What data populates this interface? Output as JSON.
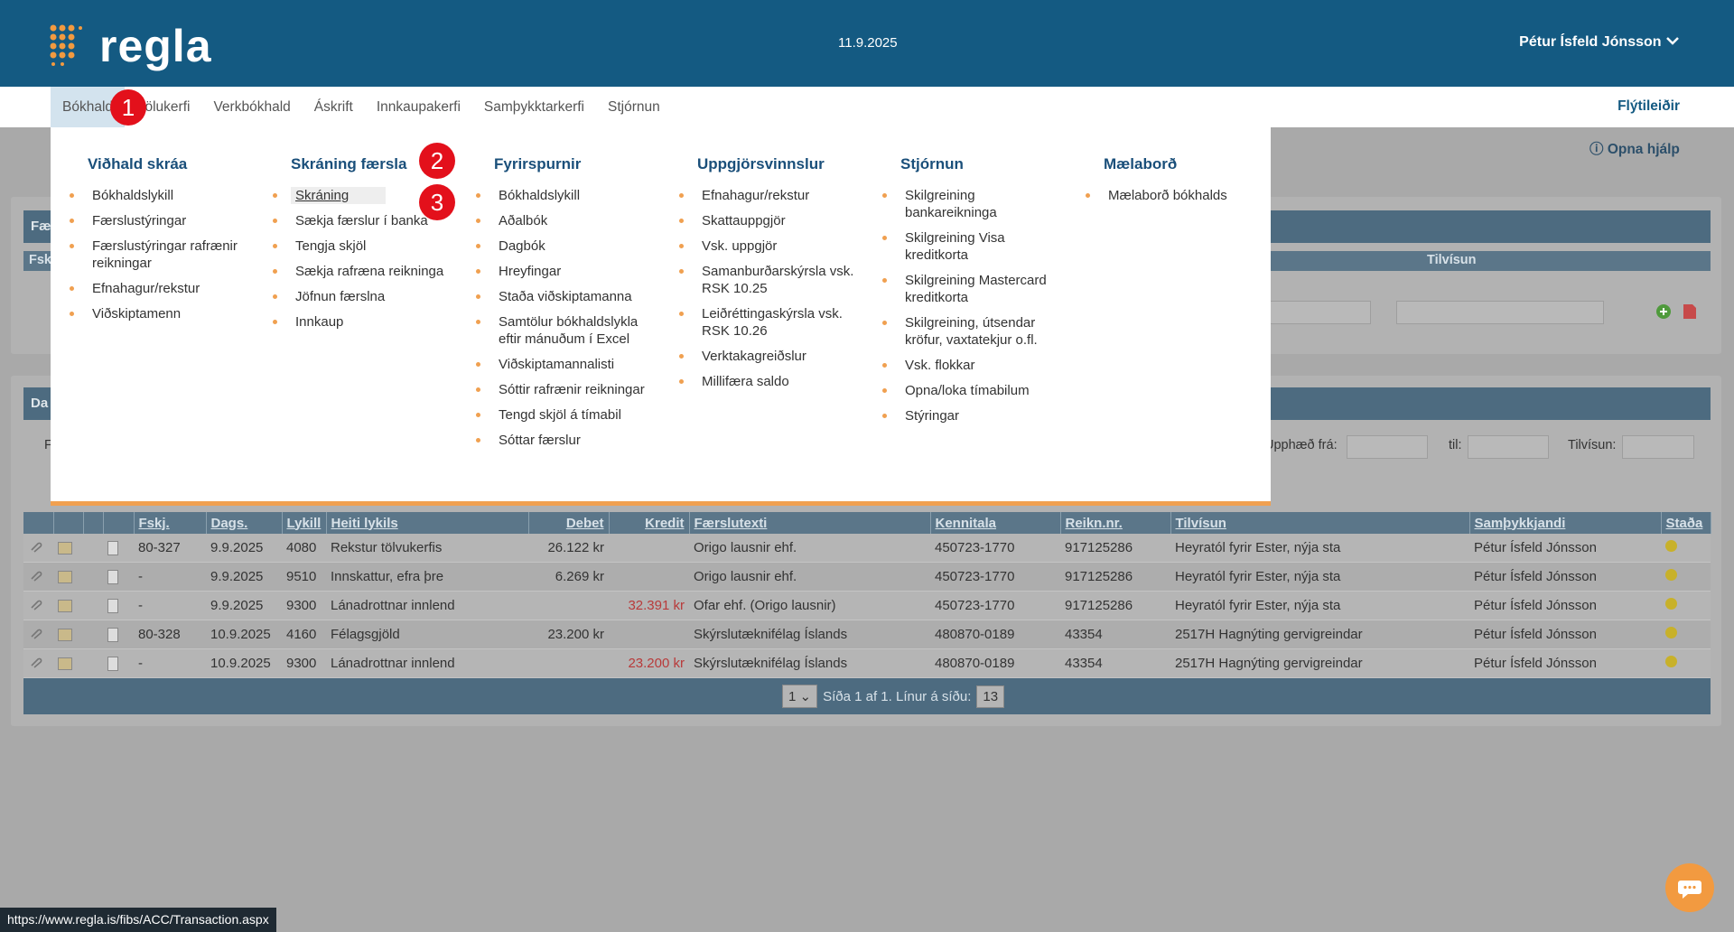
{
  "header": {
    "logo": "regla",
    "date": "11.9.2025",
    "user": "Pétur Ísfeld Jónsson"
  },
  "nav": {
    "items": [
      "Bókhald",
      "Tölukerfi",
      "Verkbókhald",
      "Áskrift",
      "Innkaupakerfi",
      "Samþykktarkerfi",
      "Stjórnun"
    ],
    "shortcuts": "Flýtileiðir"
  },
  "annotations": [
    "1",
    "2",
    "3"
  ],
  "menu": {
    "columns": [
      {
        "title": "Viðhald skráa",
        "items": [
          "Bókhaldslykill",
          "Færslustýringar",
          "Færslustýringar rafrænir reikningar",
          "Efnahagur/rekstur",
          "Viðskiptamenn"
        ]
      },
      {
        "title": "Skráning færsla",
        "items": [
          "Skráning",
          "Sækja færslur í banka",
          "Tengja skjöl",
          "Sækja rafræna reikninga",
          "Jöfnun færslna",
          "Innkaup"
        ]
      },
      {
        "title": "Fyrirspurnir",
        "items": [
          "Bókhaldslykill",
          "Aðalbók",
          "Dagbók",
          "Hreyfingar",
          "Staða viðskiptamanna",
          "Samtölur bókhaldslykla eftir mánuðum í Excel",
          "Viðskiptamannalisti",
          "Sóttir rafrænir reikningar",
          "Tengd skjöl á tímabil",
          "Sóttar færslur"
        ]
      },
      {
        "title": "Uppgjörsvinnslur",
        "items": [
          "Efnahagur/rekstur",
          "Skattauppgjör",
          "Vsk. uppgjör",
          "Samanburðarskýrsla vsk. RSK 10.25",
          "Leiðréttingaskýrsla vsk. RSK 10.26",
          "Verktakagreiðslur",
          "Millifæra saldo"
        ]
      },
      {
        "title": "Stjórnun",
        "items": [
          "Skilgreining bankareikninga",
          "Skilgreining Visa kreditkorta",
          "Skilgreining Mastercard kreditkorta",
          "Skilgreining, útsendar kröfur, vaxtatekjur o.fl.",
          "Vsk. flokkar",
          "Opna/loka tímabilum",
          "Stýringar"
        ]
      },
      {
        "title": "Mælaborð",
        "items": [
          "Mælaborð bókhalds"
        ]
      }
    ]
  },
  "background": {
    "help": "Opna hjálp",
    "panel1_title": "Fæ",
    "panel1_columns": [
      "Fsk",
      "Tilvísun"
    ],
    "panel2_title": "Da",
    "filter_labels": [
      "F",
      "Upphæð frá:",
      "til:",
      "Tilvísun:"
    ]
  },
  "table": {
    "columns": [
      "Fskj.",
      "Dags.",
      "Lykill",
      "Heiti lykils",
      "Debet",
      "Kredit",
      "Færslutexti",
      "Kennitala",
      "Reikn.nr.",
      "Tilvísun",
      "Samþykkjandi",
      "Staða"
    ],
    "rows": [
      [
        "80-327",
        "9.9.2025",
        "4080",
        "Rekstur tölvukerfis",
        "26.122 kr",
        null,
        "Origo lausnir ehf.",
        "450723-1770",
        "917125286",
        "Heyratól fyrir Ester, nýja sta",
        "Pétur Ísfeld Jónsson"
      ],
      [
        "-",
        "9.9.2025",
        "9510",
        "Innskattur, efra þre",
        "6.269 kr",
        null,
        "Origo lausnir ehf.",
        "450723-1770",
        "917125286",
        "Heyratól fyrir Ester, nýja sta",
        "Pétur Ísfeld Jónsson"
      ],
      [
        "-",
        "9.9.2025",
        "9300",
        "Lánadrottnar innlend",
        null,
        "32.391 kr",
        "Ofar ehf. (Origo lausnir)",
        "450723-1770",
        "917125286",
        "Heyratól fyrir Ester, nýja sta",
        "Pétur Ísfeld Jónsson"
      ],
      [
        "80-328",
        "10.9.2025",
        "4160",
        "Félagsgjöld",
        "23.200 kr",
        null,
        "Skýrslutæknifélag Íslands",
        "480870-0189",
        "43354",
        "2517H Hagnýting gervigreindar",
        "Pétur Ísfeld Jónsson"
      ],
      [
        "-",
        "10.9.2025",
        "9300",
        "Lánadrottnar innlend",
        null,
        "23.200 kr",
        "Skýrslutæknifélag Íslands",
        "480870-0189",
        "43354",
        "2517H Hagnýting gervigreindar",
        "Pétur Ísfeld Jónsson"
      ]
    ]
  },
  "pager": {
    "page": "1",
    "text": "Síða 1 af 1. Línur á síðu:",
    "rows_per_page": "13"
  },
  "status_url": "https://www.regla.is/fibs/ACC/Transaction.aspx"
}
